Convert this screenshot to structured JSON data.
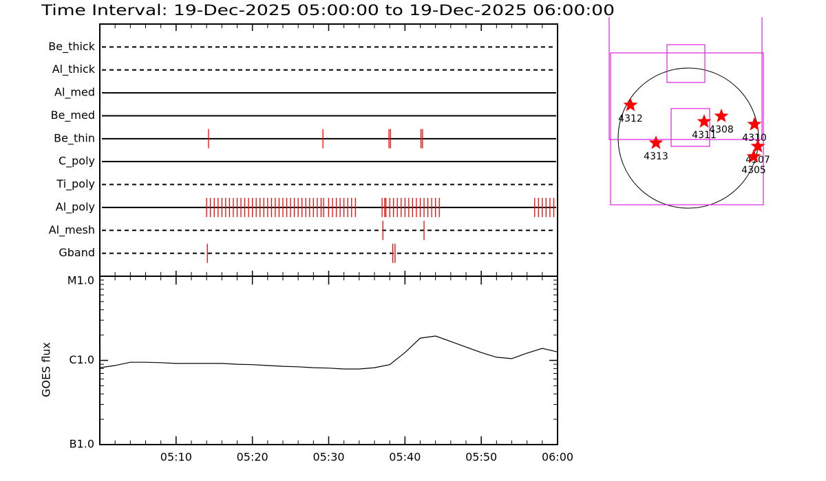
{
  "chart_data": [
    {
      "type": "events",
      "title": "Time Interval: 19-Dec-2025 05:00:00 to 19-Dec-2025 06:00:00",
      "color": "#ff0000",
      "xlim": [
        "05:00",
        "06:00"
      ],
      "rows": [
        {
          "name": "Be_thick",
          "linestyle": "dashed",
          "times": []
        },
        {
          "name": "Al_thick",
          "linestyle": "dashed",
          "times": []
        },
        {
          "name": "Al_med",
          "linestyle": "solid",
          "times": []
        },
        {
          "name": "Be_med",
          "linestyle": "solid",
          "times": []
        },
        {
          "name": "Be_thin",
          "linestyle": "solid",
          "times": [
            "05:14:15",
            "05:29:15",
            "05:37:54",
            "05:38:06",
            "05:42:06",
            "05:42:18"
          ]
        },
        {
          "name": "C_poly",
          "linestyle": "solid",
          "times": []
        },
        {
          "name": "Ti_poly",
          "linestyle": "dashed",
          "times": []
        },
        {
          "name": "Al_poly",
          "linestyle": "solid",
          "times": [
            "05:14:00",
            "05:14:30",
            "05:15:00",
            "05:15:30",
            "05:16:00",
            "05:16:30",
            "05:17:00",
            "05:17:30",
            "05:18:00",
            "05:18:30",
            "05:19:00",
            "05:19:30",
            "05:20:00",
            "05:20:30",
            "05:21:00",
            "05:21:30",
            "05:22:00",
            "05:22:30",
            "05:23:00",
            "05:23:30",
            "05:24:00",
            "05:24:30",
            "05:25:00",
            "05:25:30",
            "05:26:00",
            "05:26:30",
            "05:27:00",
            "05:27:30",
            "05:28:00",
            "05:28:30",
            "05:29:00",
            "05:29:20",
            "05:30:00",
            "05:30:30",
            "05:31:00",
            "05:31:30",
            "05:32:00",
            "05:32:30",
            "05:33:00",
            "05:33:30",
            "05:37:00",
            "05:37:20",
            "05:37:30",
            "05:38:00",
            "05:38:30",
            "05:39:00",
            "05:39:30",
            "05:40:00",
            "05:40:30",
            "05:41:00",
            "05:41:30",
            "05:42:00",
            "05:42:30",
            "05:43:00",
            "05:43:30",
            "05:44:00",
            "05:44:30",
            "05:57:00",
            "05:57:30",
            "05:58:00",
            "05:58:30",
            "05:59:00",
            "05:59:30"
          ]
        },
        {
          "name": "Al_mesh",
          "linestyle": "dashed",
          "times": [
            "05:37:06",
            "05:42:30"
          ]
        },
        {
          "name": "Gband",
          "linestyle": "dashed",
          "times": [
            "05:14:06",
            "05:38:24",
            "05:38:42"
          ]
        }
      ]
    },
    {
      "type": "line",
      "ylabel": "GOES flux",
      "color": "#000000",
      "log": true,
      "xlim": [
        "05:00",
        "06:00"
      ],
      "xticks": [
        "05:10",
        "05:20",
        "05:30",
        "05:40",
        "05:50",
        "06:00"
      ],
      "ylim": [
        1e-07,
        1e-05
      ],
      "yticks": [
        {
          "value": 1e-07,
          "label": "B1.0"
        },
        {
          "value": 1e-06,
          "label": "C1.0"
        },
        {
          "value": 1e-05,
          "label": "M1.0"
        }
      ],
      "x": [
        "05:00",
        "05:02",
        "05:04",
        "05:06",
        "05:08",
        "05:10",
        "05:12",
        "05:14",
        "05:16",
        "05:18",
        "05:20",
        "05:22",
        "05:24",
        "05:26",
        "05:28",
        "05:30",
        "05:32",
        "05:34",
        "05:36",
        "05:38",
        "05:40",
        "05:42",
        "05:44",
        "05:46",
        "05:48",
        "05:50",
        "05:52",
        "05:54",
        "05:56",
        "05:58",
        "06:00"
      ],
      "values": [
        8.2e-07,
        8.7e-07,
        9.5e-07,
        9.5e-07,
        9.4e-07,
        9.2e-07,
        9.2e-07,
        9.2e-07,
        9.2e-07,
        9e-07,
        8.9e-07,
        8.7e-07,
        8.5e-07,
        8.4e-07,
        8.2e-07,
        8.1e-07,
        7.9e-07,
        7.9e-07,
        8.2e-07,
        8.9e-07,
        1.24e-06,
        1.84e-06,
        1.95e-06,
        1.68e-06,
        1.44e-06,
        1.24e-06,
        1.09e-06,
        1.05e-06,
        1.22e-06,
        1.39e-06,
        1.26e-06
      ]
    }
  ],
  "solar_map": {
    "active_regions": [
      "4312",
      "4313",
      "4311",
      "4308",
      "4310",
      "4307",
      "4305"
    ],
    "color": "#ff0000"
  }
}
